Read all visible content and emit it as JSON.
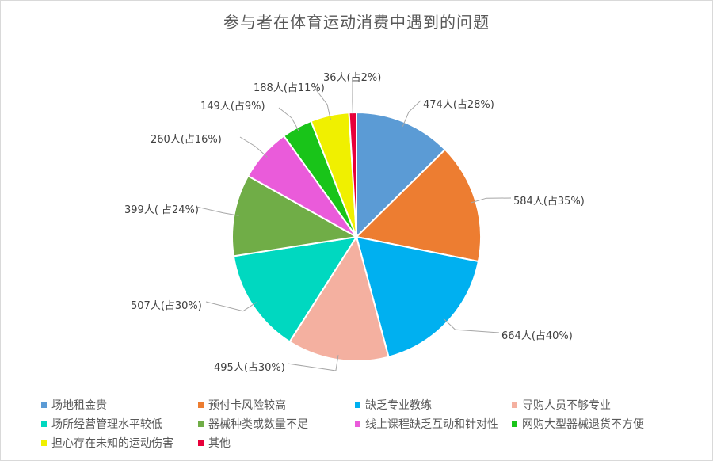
{
  "chart_data": {
    "type": "pie",
    "title": "参与者在体育运动消费中遇到的问题",
    "slices": [
      {
        "label": "场地租金贵",
        "value": 474,
        "data_label": "474人(占28%)",
        "color": "#5b9bd5"
      },
      {
        "label": "预付卡风险较高",
        "value": 584,
        "data_label": "584人(占35%)",
        "color": "#ed7d31"
      },
      {
        "label": "缺乏专业教练",
        "value": 664,
        "data_label": "664人(占40%)",
        "color": "#00b0f0"
      },
      {
        "label": "导购人员不够专业",
        "value": 495,
        "data_label": "495人(占30%)",
        "color": "#f4b0a0"
      },
      {
        "label": "场所经营管理水平较低",
        "value": 507,
        "data_label": "507人(占30%)",
        "color": "#00d8c0"
      },
      {
        "label": "器械种类或数量不足",
        "value": 399,
        "data_label": "399人( 占24%)",
        "color": "#70ad47"
      },
      {
        "label": "线上课程缺乏互动和针对性",
        "value": 260,
        "data_label": "260人(占16%)",
        "color": "#ea5bda"
      },
      {
        "label": "网购大型器械退货不方便",
        "value": 149,
        "data_label": "149人(占9%)",
        "color": "#19c419"
      },
      {
        "label": "担心存在未知的运动伤害",
        "value": 188,
        "data_label": "188人(占11%)",
        "color": "#f0f000"
      },
      {
        "label": "其他",
        "value": 36,
        "data_label": "36人(占2%)",
        "color": "#e8003a"
      }
    ],
    "legend_position": "bottom"
  }
}
